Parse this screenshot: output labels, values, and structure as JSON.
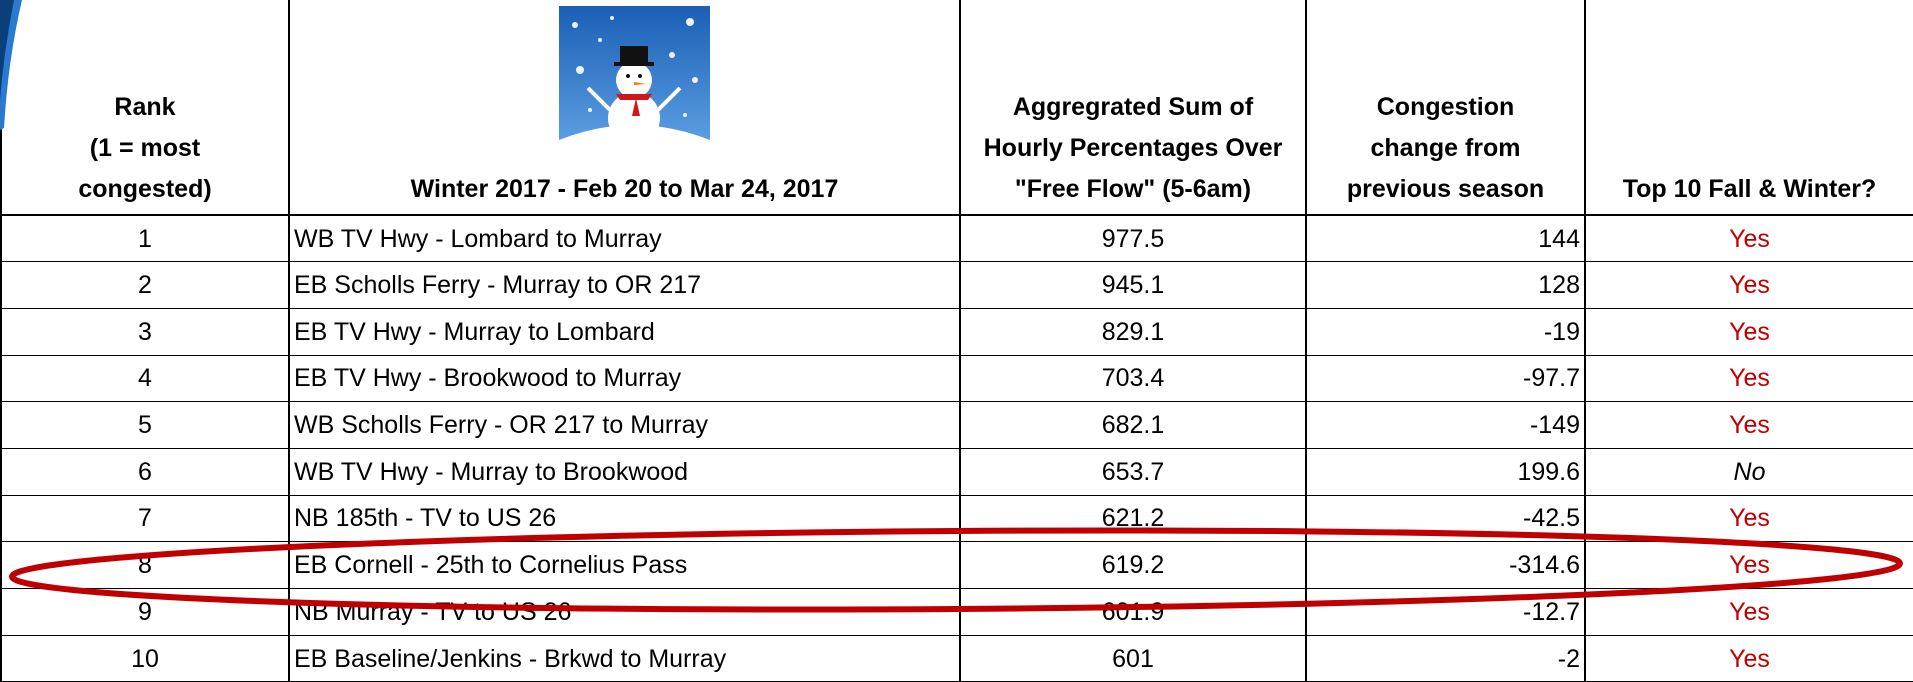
{
  "table": {
    "headers": [
      [
        "Rank",
        "(1 = most",
        "congested)"
      ],
      [
        "Winter 2017 - Feb 20 to Mar 24, 2017"
      ],
      [
        "Aggregrated Sum of",
        "Hourly Percentages Over",
        "\"Free Flow\" (5-6am)"
      ],
      [
        "Congestion",
        "change from",
        "previous season"
      ],
      [
        "Top 10 Fall & Winter?"
      ]
    ],
    "rows": [
      [
        1,
        "WB TV Hwy - Lombard to Murray",
        977.5,
        144,
        "Yes"
      ],
      [
        2,
        "EB Scholls Ferry - Murray to OR 217",
        945.1,
        128,
        "Yes"
      ],
      [
        3,
        "EB TV Hwy - Murray to Lombard",
        829.1,
        -19,
        "Yes"
      ],
      [
        4,
        "EB TV Hwy - Brookwood to Murray",
        703.4,
        -97.7,
        "Yes"
      ],
      [
        5,
        "WB Scholls Ferry - OR 217 to Murray",
        682.1,
        -149,
        "Yes"
      ],
      [
        6,
        "WB TV Hwy - Murray to Brookwood",
        653.7,
        199.6,
        "No"
      ],
      [
        7,
        "NB 185th - TV to US 26",
        621.2,
        -42.5,
        "Yes"
      ],
      [
        8,
        "EB Cornell - 25th to Cornelius Pass",
        619.2,
        -314.6,
        "Yes"
      ],
      [
        9,
        "NB Murray - TV to US 26",
        601.9,
        -12.7,
        "Yes"
      ],
      [
        10,
        "EB Baseline/Jenkins - Brkwd to Murray",
        601,
        -2,
        "Yes"
      ]
    ]
  }
}
